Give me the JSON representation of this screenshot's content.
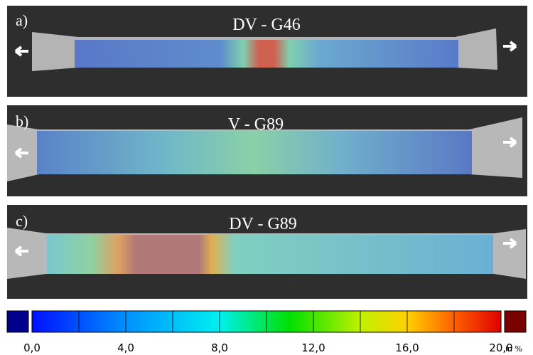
{
  "panels": [
    {
      "label": "a)",
      "title": "DV - G46"
    },
    {
      "label": "b)",
      "title": "V - G89"
    },
    {
      "label": "c)",
      "title": "DV - G89"
    }
  ],
  "colorbar": {
    "ticks": [
      {
        "value": 0,
        "label": "0,0"
      },
      {
        "value": 4,
        "label": "4,0"
      },
      {
        "value": 8,
        "label": "8,0"
      },
      {
        "value": 12,
        "label": "12,0"
      },
      {
        "value": 16,
        "label": "16,0"
      },
      {
        "value": 20,
        "label": "20,0"
      }
    ],
    "unit": "in %"
  }
}
